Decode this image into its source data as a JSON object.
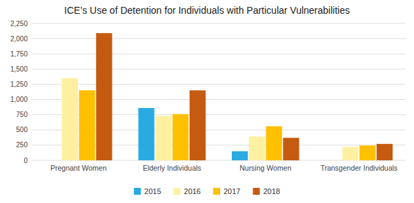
{
  "chart_data": {
    "type": "bar",
    "title": "ICE’s Use of Detention for Individuals with Particular Vulnerabilities",
    "categories": [
      "Pregnant Women",
      "Elderly Individuals",
      "Nursing Women",
      "Transgender Individuals"
    ],
    "series": [
      {
        "name": "2015",
        "color": "#29ABE2",
        "values": [
          0,
          860,
          150,
          0
        ]
      },
      {
        "name": "2016",
        "color": "#FEF0A0",
        "values": [
          1350,
          730,
          390,
          220
        ]
      },
      {
        "name": "2017",
        "color": "#FFC000",
        "values": [
          1150,
          760,
          560,
          245
        ]
      },
      {
        "name": "2018",
        "color": "#C55A11",
        "values": [
          2090,
          1150,
          370,
          270
        ]
      }
    ],
    "ylim": [
      0,
      2250
    ],
    "yticks": [
      0,
      250,
      500,
      750,
      {
        "value": 1000,
        "label": "1,000"
      },
      {
        "value": 1250,
        "label": "1,250"
      },
      {
        "value": 1500,
        "label": "1,500"
      },
      {
        "value": 1750,
        "label": "1,750"
      },
      {
        "value": 2000,
        "label": "2,000"
      },
      {
        "value": 2250,
        "label": "2,250"
      }
    ],
    "grid": true,
    "legend": "bottom"
  }
}
